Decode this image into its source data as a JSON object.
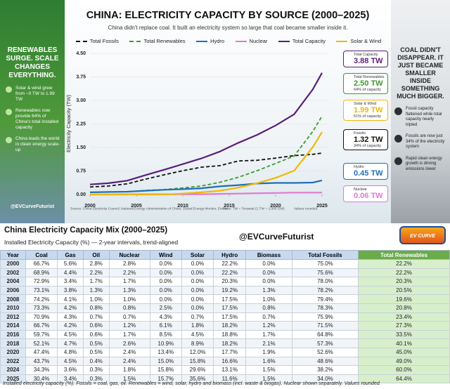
{
  "header": {
    "title": "CHINA: ELECTRICITY CAPACITY BY SOURCE (2000–2025)",
    "subtitle": "China didn't replace coal. It built an electricity system so large that coal became smaller inside it."
  },
  "left_panel": {
    "headline": "RENEWABLES SURGE. SCALE CHANGES EVERYTHING.",
    "points": [
      "Solar & wind grew from ~0 TW to 1.99 TW",
      "Renewables now provide 64% of China's total installed capacity",
      "China leads the world in clean energy scale-up"
    ],
    "handle": "@EVCurveFuturist"
  },
  "right_panel": {
    "headline": "COAL DIDN'T DISAPPEAR. IT JUST BECAME SMALLER INSIDE SOMETHING MUCH BIGGER.",
    "points": [
      "Fossil capacity flattened while total capacity nearly tripled",
      "Fossils are now just 34% of the electricity system",
      "Rapid clean energy growth is driving emissions lower"
    ]
  },
  "chart_data": {
    "type": "line",
    "y_label": "Electricity Capacity (TW)",
    "x": [
      2000,
      2002,
      2004,
      2006,
      2008,
      2010,
      2012,
      2014,
      2016,
      2018,
      2020,
      2022,
      2024,
      2025
    ],
    "xlim": [
      2000,
      2025
    ],
    "xticks": [
      2000,
      2005,
      2010,
      2015,
      2020,
      2025
    ],
    "ylim": [
      0,
      4.5
    ],
    "yticks": [
      {
        "value": 0,
        "label": "0.00"
      },
      0.75,
      {
        "value": 1.5,
        "label": "1.50"
      },
      2.25,
      {
        "value": 3,
        "label": "3.00"
      },
      3.75,
      {
        "value": 4.5,
        "label": "4.50"
      }
    ],
    "grid": true,
    "series": [
      {
        "name": "Total Fossils",
        "color": "#111111",
        "dash": true,
        "values": [
          0.24,
          0.27,
          0.34,
          0.49,
          0.63,
          0.76,
          0.87,
          0.92,
          1.07,
          1.09,
          1.16,
          1.24,
          1.28,
          1.32
        ]
      },
      {
        "name": "Total Renewables",
        "color": "#3c9a2e",
        "dash": true,
        "values": [
          0.07,
          0.08,
          0.09,
          0.13,
          0.16,
          0.21,
          0.27,
          0.39,
          0.55,
          0.76,
          0.99,
          1.23,
          2.01,
          2.5
        ]
      },
      {
        "name": "Hydro",
        "color": "#1f6fb5",
        "dash": false,
        "values": [
          0.07,
          0.08,
          0.09,
          0.12,
          0.15,
          0.17,
          0.2,
          0.26,
          0.3,
          0.35,
          0.37,
          0.37,
          0.38,
          0.45
        ]
      },
      {
        "name": "Nuclear",
        "color": "#e07ad0",
        "dash": false,
        "values": [
          0,
          0,
          0.01,
          0.01,
          0.01,
          0.01,
          0.01,
          0.02,
          0.03,
          0.04,
          0.05,
          0.06,
          0.06,
          0.06
        ]
      },
      {
        "name": "Total Capacity",
        "color": "#5a1e78",
        "dash": false,
        "values": [
          0.32,
          0.36,
          0.44,
          0.62,
          0.79,
          0.97,
          1.15,
          1.37,
          1.65,
          1.9,
          2.2,
          2.56,
          3.35,
          3.88
        ]
      },
      {
        "name": "Solar & Wind",
        "color": "#f2b705",
        "dash": false,
        "values": [
          0,
          0,
          0,
          0,
          0,
          0.03,
          0.07,
          0.12,
          0.22,
          0.36,
          0.53,
          0.76,
          1.51,
          1.99
        ]
      }
    ],
    "callouts": [
      {
        "name": "Total Capacity",
        "value": "3.88 TW",
        "color": "#5a1e78"
      },
      {
        "name": "Total Renewables",
        "value": "2.50 TW",
        "share": "64% of capacity",
        "color": "#3c9a2e"
      },
      {
        "name": "Solar & Wind",
        "value": "1.99 TW",
        "share": "51% of capacity",
        "color": "#f2b705"
      },
      {
        "name": "Fossils",
        "value": "1.32 TW",
        "share": "34% of capacity",
        "color": "#111111"
      },
      {
        "name": "Hydro",
        "value": "0.45 TW",
        "color": "#1f6fb5"
      },
      {
        "name": "Nuclear",
        "value": "0.06 TW",
        "color": "#e07ad0"
      }
    ]
  },
  "source": {
    "text": "Source: China Electricity Council, National Energy Administration of China, Global Energy Monitor, Ember",
    "note": "Note: TW = Terawatt (1 TW = 1,000 GW)",
    "rounding": "Values rounded"
  },
  "table": {
    "title": "China Electricity Capacity Mix (2000–2025)",
    "subtitle": "Installed Electricity Capacity (%) — 2-year intervals, trend-aligned",
    "handle": "@EVCurveFuturist",
    "logo": "EV CURVE FUTURIST",
    "columns": [
      "Year",
      "Coal",
      "Gas",
      "Oil",
      "Nuclear",
      "Wind",
      "Solar",
      "Hydro",
      "Biomass",
      "Total Fossils",
      "Total Renewables"
    ],
    "rows": [
      [
        "2000",
        "66.7%",
        "5.6%",
        "2.8%",
        "2.8%",
        "0.0%",
        "0.0%",
        "22.2%",
        "0.0%",
        "75.0%",
        "22.2%"
      ],
      [
        "2002",
        "68.9%",
        "4.4%",
        "2.2%",
        "2.2%",
        "0.0%",
        "0.0%",
        "22.2%",
        "0.0%",
        "75.6%",
        "22.2%"
      ],
      [
        "2004",
        "72.9%",
        "3.4%",
        "1.7%",
        "1.7%",
        "0.0%",
        "0.0%",
        "20.3%",
        "0.0%",
        "78.0%",
        "20.3%"
      ],
      [
        "2006",
        "73.1%",
        "3.8%",
        "1.3%",
        "1.3%",
        "0.0%",
        "0.0%",
        "19.2%",
        "1.3%",
        "78.2%",
        "20.5%"
      ],
      [
        "2008",
        "74.2%",
        "4.1%",
        "1.0%",
        "1.0%",
        "0.0%",
        "0.0%",
        "17.5%",
        "1.0%",
        "79.4%",
        "19.6%"
      ],
      [
        "2010",
        "73.3%",
        "4.2%",
        "0.8%",
        "0.8%",
        "2.5%",
        "0.0%",
        "17.5%",
        "0.8%",
        "78.3%",
        "20.8%"
      ],
      [
        "2012",
        "70.9%",
        "4.3%",
        "0.7%",
        "0.7%",
        "4.3%",
        "0.7%",
        "17.5%",
        "0.7%",
        "75.9%",
        "23.4%"
      ],
      [
        "2014",
        "66.7%",
        "4.2%",
        "0.6%",
        "1.2%",
        "6.1%",
        "1.8%",
        "18.2%",
        "1.2%",
        "71.5%",
        "27.3%"
      ],
      [
        "2016",
        "59.7%",
        "4.5%",
        "0.6%",
        "1.7%",
        "8.5%",
        "4.5%",
        "18.8%",
        "1.7%",
        "64.8%",
        "33.5%"
      ],
      [
        "2018",
        "52.1%",
        "4.7%",
        "0.5%",
        "2.6%",
        "10.9%",
        "8.9%",
        "18.2%",
        "2.1%",
        "57.3%",
        "40.1%"
      ],
      [
        "2020",
        "47.4%",
        "4.8%",
        "0.5%",
        "2.4%",
        "13.4%",
        "12.0%",
        "17.7%",
        "1.9%",
        "52.6%",
        "45.0%"
      ],
      [
        "2022",
        "43.7%",
        "4.5%",
        "0.4%",
        "2.4%",
        "15.0%",
        "15.8%",
        "16.6%",
        "1.6%",
        "48.6%",
        "49.0%"
      ],
      [
        "2024",
        "34.3%",
        "3.6%",
        "0.3%",
        "1.8%",
        "15.8%",
        "29.6%",
        "13.1%",
        "1.5%",
        "38.2%",
        "60.0%"
      ],
      [
        "2025",
        "30.4%",
        "3.4%",
        "0.3%",
        "1.5%",
        "15.7%",
        "35.6%",
        "11.6%",
        "1.5%",
        "34.0%",
        "64.4%"
      ]
    ],
    "footnote": "Installed electricity capacity (%). Fossils = coal, gas, oil. Renewables = wind, solar, hydro and biomass (incl. waste & biogas). Nuclear shown separately. Values rounded."
  }
}
